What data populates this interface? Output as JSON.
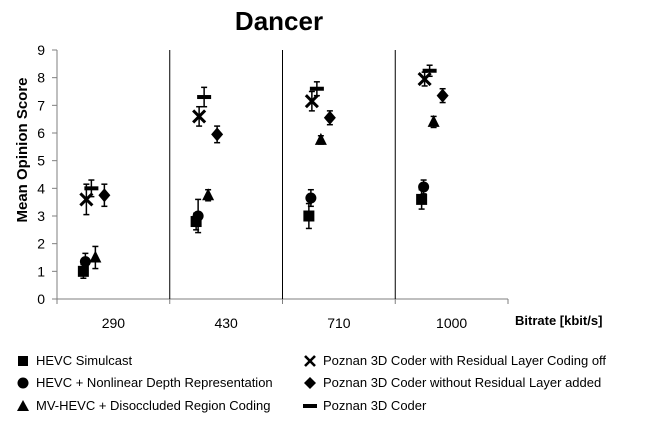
{
  "chart_data": {
    "type": "scatter",
    "title": "Dancer",
    "ylabel": "Mean Opinion Score",
    "xlabel": "Bitrate  [kbit/s]",
    "categories": [
      "290",
      "430",
      "710",
      "1000"
    ],
    "ylim": [
      0,
      9
    ],
    "yticks": [
      "0",
      "1",
      "2",
      "3",
      "4",
      "5",
      "6",
      "7",
      "8",
      "9"
    ],
    "grid": false,
    "legend_position": "bottom",
    "series": [
      {
        "name": "HEVC Simulcast",
        "marker": "square",
        "values": [
          1.0,
          2.8,
          3.0,
          3.6
        ],
        "ci": [
          0.25,
          0.3,
          0.45,
          0.35
        ]
      },
      {
        "name": "HEVC + Nonlinear Depth Representation",
        "marker": "circle",
        "values": [
          1.35,
          3.0,
          3.65,
          4.05
        ],
        "ci": [
          0.3,
          0.6,
          0.3,
          0.25
        ]
      },
      {
        "name": "MV-HEVC + Disoccluded Region Coding",
        "marker": "triangle",
        "values": [
          1.5,
          3.75,
          5.75,
          6.4
        ],
        "ci": [
          0.4,
          0.2,
          0.15,
          0.2
        ]
      },
      {
        "name": "Poznan 3D Coder with Residual Layer Coding off",
        "marker": "x",
        "values": [
          3.6,
          6.6,
          7.15,
          7.95
        ],
        "ci": [
          0.55,
          0.35,
          0.35,
          0.25
        ]
      },
      {
        "name": "Poznan 3D Coder without Residual Layer added",
        "marker": "diamond",
        "values": [
          3.75,
          5.95,
          6.55,
          7.35
        ],
        "ci": [
          0.4,
          0.3,
          0.25,
          0.25
        ]
      },
      {
        "name": "Poznan 3D Coder",
        "marker": "dash",
        "values": [
          4.0,
          7.3,
          7.6,
          8.25
        ],
        "ci": [
          0.3,
          0.35,
          0.25,
          0.2
        ]
      }
    ]
  }
}
